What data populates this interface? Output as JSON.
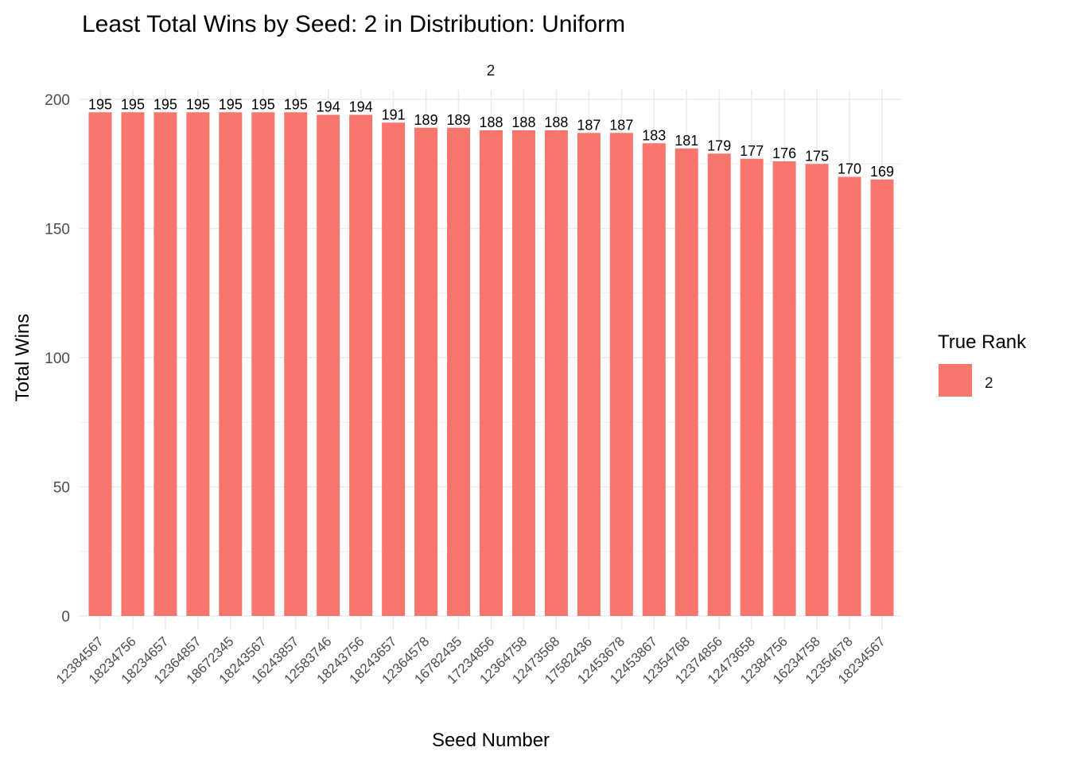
{
  "chart_data": {
    "type": "bar",
    "title": "Least Total Wins by Seed: 2 in Distribution: Uniform",
    "facet_label": "2",
    "xlabel": "Seed Number",
    "ylabel": "Total Wins",
    "ylim": [
      0,
      200
    ],
    "yticks": [
      0,
      50,
      100,
      150,
      200
    ],
    "grid": true,
    "legend": {
      "title": "True Rank",
      "position": "right",
      "entries": [
        {
          "label": "2",
          "color": "#F8766D"
        }
      ]
    },
    "bar_color": "#F8766D",
    "categories": [
      "12384567",
      "18234756",
      "18234657",
      "12364857",
      "18672345",
      "18243567",
      "16243857",
      "12583746",
      "18243756",
      "18243657",
      "12364578",
      "16782435",
      "17234856",
      "12364758",
      "12473568",
      "17582436",
      "12453678",
      "12453867",
      "12354768",
      "12374856",
      "12473658",
      "12384756",
      "16234758",
      "12354678",
      "18234567"
    ],
    "values": [
      195,
      195,
      195,
      195,
      195,
      195,
      195,
      194,
      194,
      191,
      189,
      189,
      188,
      188,
      188,
      187,
      187,
      183,
      181,
      179,
      177,
      176,
      175,
      170,
      169
    ]
  }
}
